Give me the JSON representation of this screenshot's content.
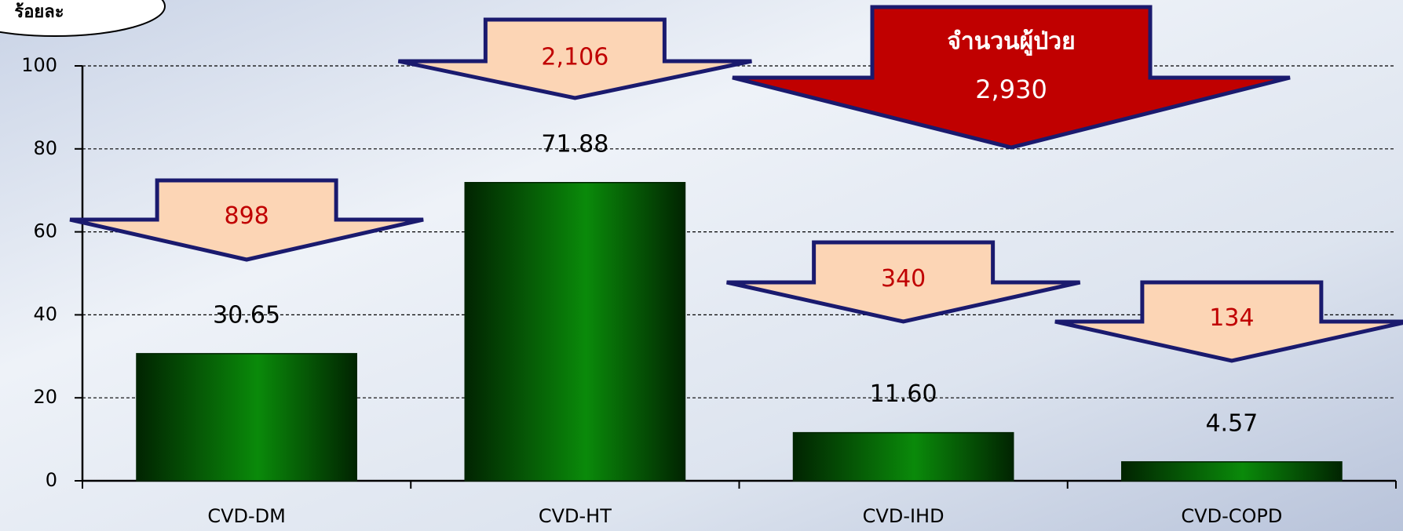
{
  "chart_data": {
    "type": "bar",
    "ylabel": "ร้อยละ",
    "categories": [
      "CVD-DM",
      "CVD-HT",
      "CVD-IHD",
      "CVD-COPD"
    ],
    "values": [
      30.65,
      71.88,
      11.6,
      4.57
    ],
    "value_labels": [
      "30.65",
      "71.88",
      "11.60",
      "4.57"
    ],
    "annotations": [
      "898",
      "2,106",
      "340",
      "134"
    ],
    "total_annotation": {
      "label": "จำนวนผู้ป่วย",
      "value": "2,930"
    },
    "color": "#0a8a0a",
    "ylim": [
      0,
      100
    ],
    "yticks": [
      0,
      20,
      40,
      60,
      80,
      100
    ],
    "grid": true
  }
}
